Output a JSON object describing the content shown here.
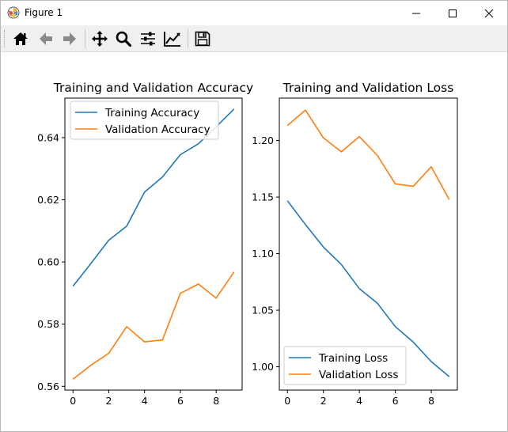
{
  "window": {
    "title": "Figure 1",
    "controls": {
      "minimize": "minimize",
      "maximize": "maximize",
      "close": "close"
    }
  },
  "toolbar": {
    "buttons": [
      {
        "icon": "home-icon",
        "label": "Home"
      },
      {
        "icon": "back-arrow-icon",
        "label": "Back"
      },
      {
        "icon": "forward-arrow-icon",
        "label": "Forward"
      },
      {
        "icon": "pan-move-icon",
        "label": "Pan"
      },
      {
        "icon": "zoom-icon",
        "label": "Zoom"
      },
      {
        "icon": "subplots-sliders-icon",
        "label": "Subplots"
      },
      {
        "icon": "edit-axes-icon",
        "label": "Customize"
      },
      {
        "icon": "save-disk-icon",
        "label": "Save"
      }
    ]
  },
  "colors": {
    "series1": "#1f77b4",
    "series2": "#ff7f0e"
  },
  "chart_data": [
    {
      "type": "line",
      "title": "Training and Validation Accuracy",
      "xlabel": "",
      "ylabel": "",
      "x": [
        0,
        1,
        2,
        3,
        4,
        5,
        6,
        7,
        8,
        9
      ],
      "xlim": [
        -0.45,
        9.45
      ],
      "ylim": [
        0.5588,
        0.6527
      ],
      "xticks": [
        0,
        2,
        4,
        6,
        8
      ],
      "yticks": [
        0.56,
        0.58,
        0.6,
        0.62,
        0.64
      ],
      "ytick_labels": [
        "0.56",
        "0.58",
        "0.60",
        "0.62",
        "0.64"
      ],
      "legend_position": "upper-left",
      "series": [
        {
          "name": "Training Accuracy",
          "values": [
            0.5922,
            0.5995,
            0.607,
            0.6115,
            0.6225,
            0.6273,
            0.6345,
            0.638,
            0.6435,
            0.6492
          ]
        },
        {
          "name": "Validation Accuracy",
          "values": [
            0.5623,
            0.5668,
            0.5706,
            0.5792,
            0.5743,
            0.5749,
            0.5899,
            0.5929,
            0.5884,
            0.5968
          ]
        }
      ]
    },
    {
      "type": "line",
      "title": "Training and Validation Loss",
      "xlabel": "",
      "ylabel": "",
      "x": [
        0,
        1,
        2,
        3,
        4,
        5,
        6,
        7,
        8,
        9
      ],
      "xlim": [
        -0.45,
        9.45
      ],
      "ylim": [
        0.9794,
        1.2375
      ],
      "xticks": [
        0,
        2,
        4,
        6,
        8
      ],
      "yticks": [
        1.0,
        1.05,
        1.1,
        1.15,
        1.2
      ],
      "ytick_labels": [
        "1.00",
        "1.05",
        "1.10",
        "1.15",
        "1.20"
      ],
      "legend_position": "lower-left",
      "series": [
        {
          "name": "Training Loss",
          "values": [
            1.1468,
            1.1257,
            1.1058,
            1.0904,
            1.0691,
            1.0562,
            1.0355,
            1.0218,
            1.0046,
            0.9912
          ]
        },
        {
          "name": "Validation Loss",
          "values": [
            1.2133,
            1.2269,
            1.2023,
            1.19,
            1.2035,
            1.1868,
            1.1617,
            1.1596,
            1.1768,
            1.1477
          ]
        }
      ]
    }
  ]
}
